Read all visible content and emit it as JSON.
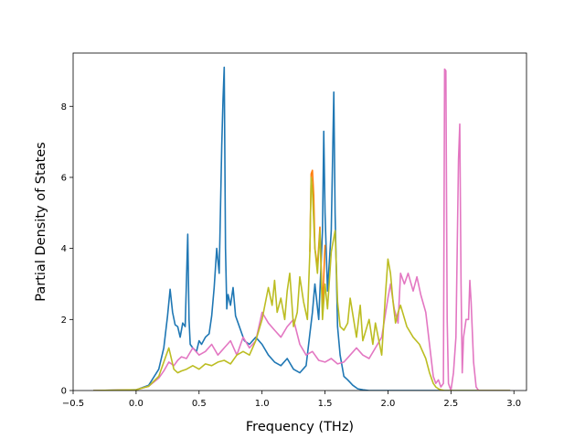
{
  "chart_data": {
    "type": "line",
    "title": "",
    "xlabel": "Frequency (THz)",
    "ylabel": "Partial Density of States",
    "xlim": [
      -0.5,
      3.1
    ],
    "ylim": [
      0,
      9.5
    ],
    "xticks": [
      -0.5,
      0.0,
      0.5,
      1.0,
      1.5,
      2.0,
      2.5,
      3.0
    ],
    "xtick_labels": [
      "−0.5",
      "0.0",
      "0.5",
      "1.0",
      "1.5",
      "2.0",
      "2.5",
      "3.0"
    ],
    "yticks": [
      0,
      2,
      4,
      6,
      8
    ],
    "ytick_labels": [
      "0",
      "2",
      "4",
      "6",
      "8"
    ],
    "grid": false,
    "legend": "none",
    "series": [
      {
        "color": "#1f77b4",
        "x": [
          -0.34,
          0.0,
          0.1,
          0.18,
          0.22,
          0.25,
          0.27,
          0.29,
          0.31,
          0.33,
          0.35,
          0.37,
          0.39,
          0.41,
          0.42,
          0.43,
          0.45,
          0.48,
          0.5,
          0.52,
          0.55,
          0.58,
          0.6,
          0.62,
          0.64,
          0.66,
          0.68,
          0.69,
          0.7,
          0.71,
          0.72,
          0.73,
          0.75,
          0.77,
          0.79,
          0.81,
          0.84,
          0.86,
          0.9,
          0.95,
          1.0,
          1.05,
          1.1,
          1.15,
          1.2,
          1.25,
          1.3,
          1.35,
          1.38,
          1.4,
          1.42,
          1.45,
          1.48,
          1.49,
          1.5,
          1.52,
          1.55,
          1.57,
          1.58,
          1.6,
          1.62,
          1.65,
          1.68,
          1.72,
          1.76,
          1.8,
          1.85,
          2.0,
          2.5,
          2.97
        ],
        "y": [
          0,
          0.02,
          0.15,
          0.6,
          1.2,
          2.1,
          2.85,
          2.2,
          1.85,
          1.8,
          1.5,
          1.9,
          1.8,
          4.4,
          2.0,
          1.3,
          1.2,
          1.1,
          1.4,
          1.3,
          1.5,
          1.6,
          2.1,
          2.9,
          4.0,
          3.3,
          6.9,
          8.2,
          9.1,
          4.0,
          2.3,
          2.7,
          2.4,
          2.9,
          2.1,
          1.9,
          1.6,
          1.4,
          1.3,
          1.5,
          1.3,
          1.0,
          0.8,
          0.7,
          0.9,
          0.6,
          0.5,
          0.7,
          1.6,
          2.2,
          3.0,
          2.0,
          4.5,
          7.3,
          5.0,
          2.8,
          4.5,
          8.4,
          5.0,
          1.8,
          1.0,
          0.4,
          0.3,
          0.15,
          0.05,
          0.02,
          0,
          0,
          0,
          0
        ]
      },
      {
        "color": "#ff7f0e",
        "x": [
          1.38,
          1.39,
          1.4,
          1.41,
          1.42,
          1.44,
          1.46,
          1.48,
          1.5
        ],
        "y": [
          3.9,
          6.1,
          6.2,
          5.5,
          4.0,
          3.5,
          4.6,
          2.3,
          4.1
        ]
      },
      {
        "color": "#e377c2",
        "x": [
          -0.34,
          0.0,
          0.1,
          0.18,
          0.22,
          0.26,
          0.3,
          0.33,
          0.36,
          0.4,
          0.45,
          0.5,
          0.55,
          0.6,
          0.65,
          0.7,
          0.75,
          0.8,
          0.85,
          0.9,
          0.95,
          1.0,
          1.05,
          1.1,
          1.15,
          1.2,
          1.25,
          1.3,
          1.35,
          1.4,
          1.45,
          1.5,
          1.55,
          1.6,
          1.65,
          1.7,
          1.75,
          1.8,
          1.85,
          1.9,
          1.95,
          2.0,
          2.02,
          2.05,
          2.08,
          2.1,
          2.13,
          2.16,
          2.2,
          2.23,
          2.26,
          2.3,
          2.33,
          2.36,
          2.38,
          2.4,
          2.42,
          2.44,
          2.45,
          2.46,
          2.47,
          2.48,
          2.5,
          2.52,
          2.54,
          2.56,
          2.57,
          2.58,
          2.59,
          2.6,
          2.62,
          2.64,
          2.65,
          2.66,
          2.68,
          2.7,
          2.72,
          2.97
        ],
        "y": [
          0,
          0.02,
          0.12,
          0.35,
          0.55,
          0.8,
          0.7,
          0.85,
          0.95,
          0.9,
          1.2,
          1.0,
          1.1,
          1.3,
          1.0,
          1.2,
          1.4,
          1.0,
          1.5,
          1.2,
          1.4,
          2.2,
          1.9,
          1.7,
          1.5,
          1.8,
          2.0,
          1.3,
          1.0,
          1.1,
          0.85,
          0.8,
          0.9,
          0.75,
          0.8,
          1.0,
          1.2,
          1.0,
          0.9,
          1.2,
          1.5,
          2.6,
          3.0,
          2.3,
          1.9,
          3.3,
          3.0,
          3.3,
          2.8,
          3.2,
          2.7,
          2.2,
          1.3,
          0.4,
          0.2,
          0.3,
          0.1,
          0.2,
          9.05,
          9.0,
          2.0,
          0.2,
          0,
          0.5,
          1.5,
          6.5,
          7.5,
          3.0,
          0.5,
          1.5,
          2.0,
          2.0,
          3.1,
          2.5,
          0.8,
          0.1,
          0,
          0
        ]
      },
      {
        "color": "#bcbd22",
        "x": [
          -0.34,
          0.0,
          0.1,
          0.18,
          0.22,
          0.26,
          0.3,
          0.33,
          0.36,
          0.4,
          0.45,
          0.5,
          0.55,
          0.6,
          0.65,
          0.7,
          0.75,
          0.8,
          0.85,
          0.9,
          0.95,
          1.0,
          1.05,
          1.08,
          1.1,
          1.12,
          1.15,
          1.18,
          1.2,
          1.22,
          1.25,
          1.28,
          1.3,
          1.33,
          1.36,
          1.38,
          1.39,
          1.4,
          1.42,
          1.44,
          1.46,
          1.48,
          1.5,
          1.52,
          1.55,
          1.57,
          1.58,
          1.6,
          1.62,
          1.65,
          1.68,
          1.7,
          1.75,
          1.78,
          1.8,
          1.85,
          1.88,
          1.9,
          1.95,
          1.98,
          2.0,
          2.02,
          2.04,
          2.06,
          2.08,
          2.1,
          2.15,
          2.2,
          2.25,
          2.3,
          2.33,
          2.36,
          2.38,
          2.4,
          2.42,
          2.45,
          2.97
        ],
        "y": [
          0,
          0.02,
          0.12,
          0.4,
          0.8,
          1.2,
          0.6,
          0.5,
          0.55,
          0.6,
          0.7,
          0.6,
          0.75,
          0.7,
          0.8,
          0.85,
          0.75,
          1.0,
          1.1,
          1.0,
          1.4,
          2.0,
          2.9,
          2.4,
          3.1,
          2.2,
          2.6,
          2.0,
          2.8,
          3.3,
          1.8,
          2.2,
          3.2,
          2.5,
          2.0,
          3.9,
          6.0,
          5.6,
          4.0,
          3.3,
          4.5,
          2.0,
          3.0,
          2.3,
          3.9,
          4.3,
          4.5,
          2.5,
          1.8,
          1.7,
          1.9,
          2.6,
          1.5,
          2.4,
          1.4,
          2.0,
          1.3,
          1.9,
          1.0,
          2.7,
          3.7,
          3.3,
          2.5,
          1.9,
          2.2,
          2.4,
          1.8,
          1.5,
          1.3,
          0.9,
          0.5,
          0.2,
          0.1,
          0.05,
          0.02,
          0,
          0
        ]
      }
    ]
  }
}
